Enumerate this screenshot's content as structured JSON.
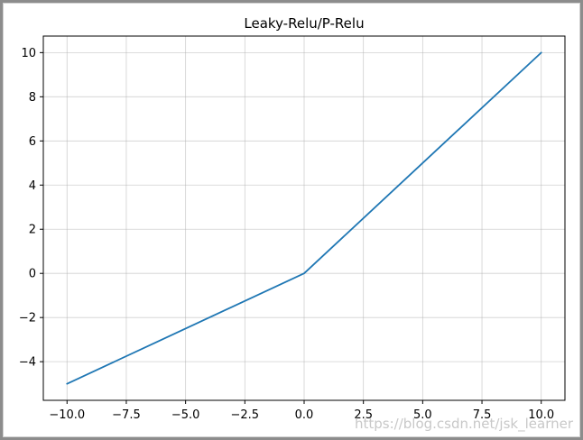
{
  "window": {
    "border_color": "#8c8c8c"
  },
  "watermark": {
    "text": "https://blog.csdn.net/jsk_learner"
  },
  "chart_data": {
    "type": "line",
    "title": "Leaky-Relu/P-Relu",
    "xlabel": "",
    "ylabel": "",
    "xlim": [
      -11.0,
      11.0
    ],
    "ylim": [
      -5.75,
      10.75
    ],
    "xticks": [
      -10.0,
      -7.5,
      -5.0,
      -2.5,
      0.0,
      2.5,
      5.0,
      7.5,
      10.0
    ],
    "xtick_labels": [
      "−10.0",
      "−7.5",
      "−5.0",
      "−2.5",
      "0.0",
      "2.5",
      "5.0",
      "7.5",
      "10.0"
    ],
    "yticks": [
      -4,
      -2,
      0,
      2,
      4,
      6,
      8,
      10
    ],
    "ytick_labels": [
      "−4",
      "−2",
      "0",
      "2",
      "4",
      "6",
      "8",
      "10"
    ],
    "grid": true,
    "legend": "none",
    "series": [
      {
        "color": "#1f77b4",
        "x": [
          -10,
          0,
          10
        ],
        "y": [
          -5,
          0,
          10
        ]
      }
    ]
  }
}
